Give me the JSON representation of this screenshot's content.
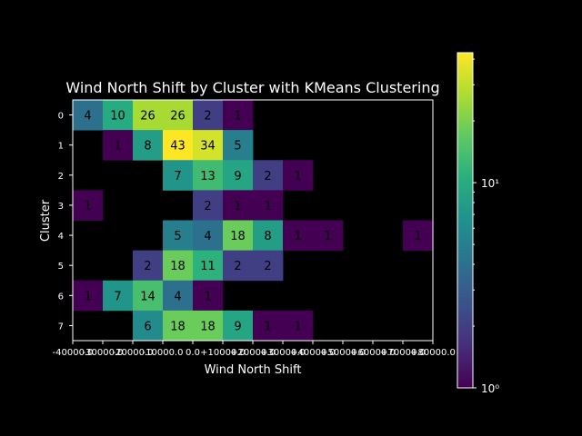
{
  "chart_data": {
    "type": "heatmap",
    "title": "Wind North Shift by Cluster with KMeans Clustering",
    "xlabel": "Wind North Shift",
    "ylabel": "Cluster",
    "x_tick_labels": [
      "-40000.0",
      "-30000.0",
      "-20000.0",
      "-10000.0",
      "0.0",
      "+10000.0",
      "+20000.0",
      "+30000.0",
      "+40000.0",
      "+50000.0",
      "+60000.0",
      "+70000.0",
      "+80000.0"
    ],
    "y_categories": [
      "0",
      "1",
      "2",
      "3",
      "4",
      "5",
      "6",
      "7"
    ],
    "matrix": [
      [
        4,
        10,
        26,
        26,
        2,
        1,
        null,
        null,
        null,
        null,
        null,
        null
      ],
      [
        null,
        1,
        8,
        43,
        34,
        5,
        null,
        null,
        null,
        null,
        null,
        null
      ],
      [
        null,
        null,
        null,
        7,
        13,
        9,
        2,
        1,
        null,
        null,
        null,
        null
      ],
      [
        1,
        null,
        null,
        null,
        2,
        1,
        1,
        null,
        null,
        null,
        null,
        null
      ],
      [
        null,
        null,
        null,
        5,
        4,
        18,
        8,
        1,
        1,
        null,
        null,
        1
      ],
      [
        null,
        null,
        2,
        18,
        11,
        2,
        2,
        null,
        null,
        null,
        null,
        null
      ],
      [
        1,
        7,
        14,
        4,
        1,
        null,
        null,
        null,
        null,
        null,
        null,
        null
      ],
      [
        null,
        null,
        6,
        18,
        18,
        9,
        1,
        1,
        null,
        null,
        null,
        null
      ]
    ],
    "color_scale": "log",
    "colormap": "viridis",
    "color_range": [
      1,
      43
    ],
    "colorbar_ticks": [
      {
        "value": 1,
        "label": "10⁰"
      },
      {
        "value": 10,
        "label": "10¹"
      }
    ],
    "background_color": "#000000",
    "grid": false
  }
}
